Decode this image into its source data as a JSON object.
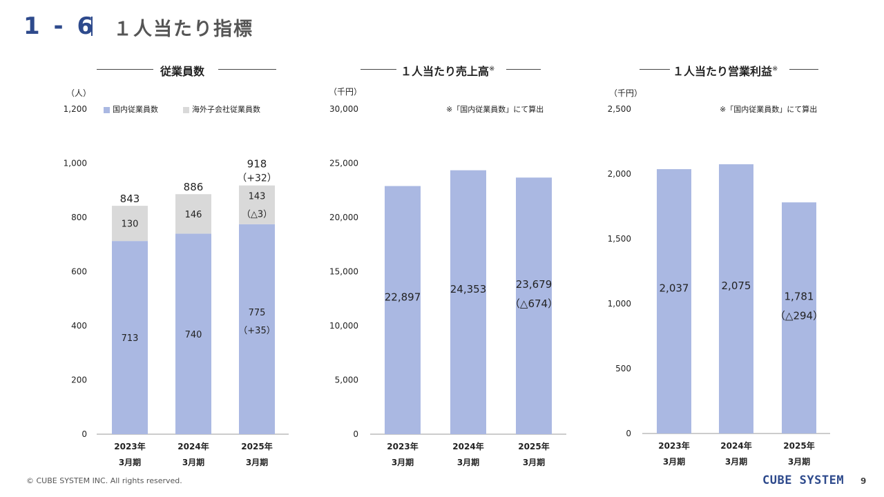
{
  "header": {
    "number": "1 - 6",
    "title": "１人当たり指標"
  },
  "colors": {
    "domestic": "#aab8e2",
    "overseas": "#d9d9d9",
    "accent": "#2e4a8c"
  },
  "panels": {
    "employees": {
      "title": "従業員数",
      "unit": "（人）",
      "legend": [
        "国内従業員数",
        "海外子会社従業員数"
      ]
    },
    "sales": {
      "title": "１人当たり売上高",
      "title_mark": "※",
      "unit": "（千円）",
      "note": "※「国内従業員数」にて算出"
    },
    "profit": {
      "title": "１人当たり営業利益",
      "title_mark": "※",
      "unit": "（千円）",
      "note": "※「国内従業員数」にて算出"
    }
  },
  "chart_data": [
    {
      "type": "bar",
      "stacked": true,
      "categories": [
        [
          "2023年",
          "3月期"
        ],
        [
          "2024年",
          "3月期"
        ],
        [
          "2025年",
          "3月期"
        ]
      ],
      "yticks": [
        "0",
        "200",
        "400",
        "600",
        "800",
        "1,000",
        "1,200"
      ],
      "ylim": [
        0,
        1200
      ],
      "series": [
        {
          "name": "国内従業員数",
          "values": [
            713,
            740,
            775
          ],
          "labels": [
            "713",
            "740",
            "775"
          ],
          "sublabels": [
            "",
            "",
            "（+35）"
          ]
        },
        {
          "name": "海外子会社従業員数",
          "values": [
            130,
            146,
            143
          ],
          "labels": [
            "130",
            "146",
            "143"
          ],
          "sublabels": [
            "",
            "",
            "（△3）"
          ]
        }
      ],
      "totals": [
        "843",
        "886",
        "918"
      ],
      "total_sublabels": [
        "",
        "",
        "（+32）"
      ]
    },
    {
      "type": "bar",
      "categories": [
        [
          "2023年",
          "3月期"
        ],
        [
          "2024年",
          "3月期"
        ],
        [
          "2025年",
          "3月期"
        ]
      ],
      "yticks": [
        "0",
        "5,000",
        "10,000",
        "15,000",
        "20,000",
        "25,000",
        "30,000"
      ],
      "ylim": [
        0,
        30000
      ],
      "values": [
        22897,
        24353,
        23679
      ],
      "labels": [
        "22,897",
        "24,353",
        "23,679"
      ],
      "sublabels": [
        "",
        "",
        "（△674）"
      ]
    },
    {
      "type": "bar",
      "categories": [
        [
          "2023年",
          "3月期"
        ],
        [
          "2024年",
          "3月期"
        ],
        [
          "2025年",
          "3月期"
        ]
      ],
      "yticks": [
        "0",
        "500",
        "1,000",
        "1,500",
        "2,000",
        "2,500"
      ],
      "ylim": [
        0,
        2500
      ],
      "values": [
        2037,
        2075,
        1781
      ],
      "labels": [
        "2,037",
        "2,075",
        "1,781"
      ],
      "sublabels": [
        "",
        "",
        "（△294）"
      ]
    }
  ],
  "footer": {
    "copyright": "© CUBE SYSTEM INC. All rights reserved.",
    "logo": "CUBE SYSTEM",
    "page": "9"
  }
}
